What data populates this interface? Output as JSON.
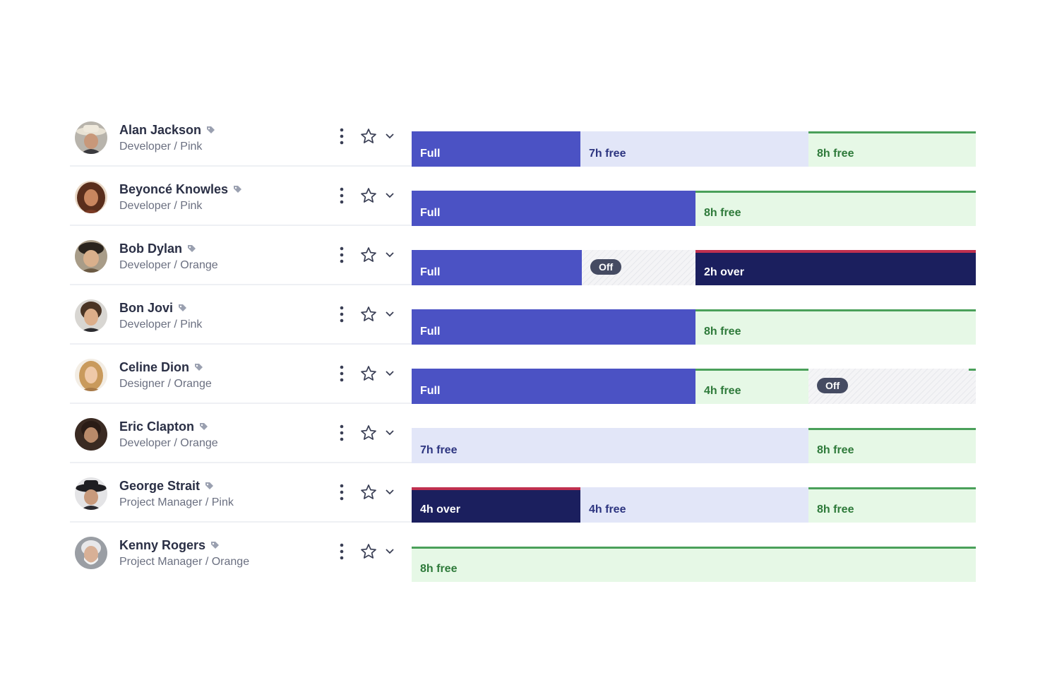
{
  "colors": {
    "full": "#4b52c4",
    "partial": "#e2e6f8",
    "free_bg": "#e6f8e6",
    "free_accent": "#4aa05a",
    "over": "#1b1f5e",
    "over_accent": "#c0304f",
    "off_pill": "#454b62"
  },
  "people": [
    {
      "name": "Alan Jackson",
      "role": "Developer / Pink",
      "icons": [
        "avatar",
        "tag-icon",
        "kebab-menu-icon",
        "star-icon",
        "chevron-down-icon"
      ],
      "days": [
        {
          "type": "full",
          "label": "Full"
        },
        {
          "type": "partial",
          "label": "7h free"
        },
        {
          "type": "free",
          "label": "8h free"
        }
      ]
    },
    {
      "name": "Beyoncé Knowles",
      "role": "Developer / Pink",
      "icons": [
        "avatar",
        "tag-icon",
        "kebab-menu-icon",
        "star-icon",
        "chevron-down-icon"
      ],
      "days": [
        {
          "type": "full",
          "label": "Full"
        },
        {
          "type": "free",
          "label": "8h free"
        }
      ]
    },
    {
      "name": "Bob Dylan",
      "role": "Developer / Orange",
      "icons": [
        "avatar",
        "tag-icon",
        "kebab-menu-icon",
        "star-icon",
        "chevron-down-icon"
      ],
      "days": [
        {
          "type": "full",
          "label": "Full"
        },
        {
          "type": "off",
          "label": "Off"
        },
        {
          "type": "over",
          "label": "2h over"
        }
      ]
    },
    {
      "name": "Bon Jovi",
      "role": "Developer / Pink",
      "icons": [
        "avatar",
        "tag-icon",
        "kebab-menu-icon",
        "star-icon",
        "chevron-down-icon"
      ],
      "days": [
        {
          "type": "full",
          "label": "Full"
        },
        {
          "type": "free",
          "label": "8h free"
        }
      ]
    },
    {
      "name": "Celine Dion",
      "role": "Designer / Orange",
      "icons": [
        "avatar",
        "tag-icon",
        "kebab-menu-icon",
        "star-icon",
        "chevron-down-icon"
      ],
      "days": [
        {
          "type": "full",
          "label": "Full"
        },
        {
          "type": "free",
          "label": "4h free"
        },
        {
          "type": "off",
          "label": "Off"
        }
      ]
    },
    {
      "name": "Eric Clapton",
      "role": "Developer / Orange",
      "icons": [
        "avatar",
        "tag-icon",
        "kebab-menu-icon",
        "star-icon",
        "chevron-down-icon"
      ],
      "days": [
        {
          "type": "partial",
          "label": "7h free"
        },
        {
          "type": "free",
          "label": "8h free"
        }
      ]
    },
    {
      "name": "George Strait",
      "role": "Project Manager / Pink",
      "icons": [
        "avatar",
        "tag-icon",
        "kebab-menu-icon",
        "star-icon",
        "chevron-down-icon"
      ],
      "days": [
        {
          "type": "over",
          "label": "4h over"
        },
        {
          "type": "partial",
          "label": "4h free"
        },
        {
          "type": "free",
          "label": "8h free"
        }
      ]
    },
    {
      "name": "Kenny Rogers",
      "role": "Project Manager / Orange",
      "icons": [
        "avatar",
        "tag-icon",
        "kebab-menu-icon",
        "star-icon",
        "chevron-down-icon"
      ],
      "days": [
        {
          "type": "free",
          "label": "8h free"
        }
      ]
    }
  ]
}
